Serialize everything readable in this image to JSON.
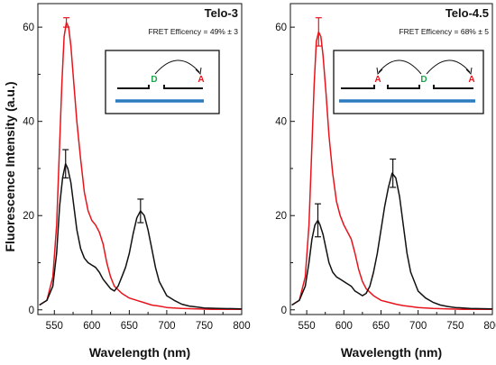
{
  "figure": {
    "ylabel": "Fluorescence Intensity (a.u.)",
    "colors": {
      "red": "#e8141c",
      "black": "#111111",
      "green": "#1aa34a",
      "blue": "#2b7bbf"
    }
  },
  "chart_data": [
    {
      "type": "line",
      "title": "Telo-3",
      "subtitle": "FRET Efficency = 49% ± 3",
      "xlabel": "Wavelength (nm)",
      "ylabel": "Fluorescence Intensity (a.u.)",
      "xlim": [
        528,
        800
      ],
      "ylim": [
        -1,
        65
      ],
      "xticks": [
        550,
        600,
        650,
        700,
        750,
        800
      ],
      "yticks": [
        0,
        20,
        40,
        60
      ],
      "grid": false,
      "series": [
        {
          "color": "#e8141c",
          "x": [
            530,
            540,
            548,
            553,
            557,
            560,
            563,
            566,
            569,
            572,
            576,
            580,
            585,
            590,
            595,
            600,
            605,
            610,
            615,
            620,
            625,
            630,
            640,
            650,
            660,
            670,
            680,
            690,
            700,
            720,
            740,
            760,
            780,
            800
          ],
          "y": [
            1,
            2,
            7,
            18,
            35,
            48,
            58,
            61,
            60,
            56,
            48,
            40,
            32,
            25,
            21,
            19,
            18,
            16.5,
            14,
            10,
            7,
            5,
            3.5,
            2.5,
            2,
            1.5,
            1,
            0.8,
            0.5,
            0.3,
            0.2,
            0.1,
            0.1,
            0.1
          ],
          "error_bars": [
            {
              "x": 566,
              "y": 61,
              "err": 1
            }
          ]
        },
        {
          "color": "#111111",
          "x": [
            530,
            540,
            548,
            553,
            557,
            561,
            565,
            568,
            572,
            576,
            580,
            585,
            590,
            595,
            600,
            605,
            610,
            615,
            620,
            625,
            630,
            635,
            640,
            645,
            650,
            655,
            660,
            665,
            670,
            675,
            680,
            685,
            690,
            700,
            710,
            720,
            730,
            740,
            750,
            770,
            800
          ],
          "y": [
            1,
            2,
            5,
            12,
            22,
            28,
            31,
            30,
            27,
            22,
            17,
            13,
            11,
            10,
            9.5,
            9,
            8,
            6.5,
            5.5,
            4.5,
            4,
            5,
            7,
            9,
            12,
            16,
            19.5,
            21,
            20,
            17,
            13,
            9,
            6,
            3,
            2,
            1.2,
            0.8,
            0.6,
            0.4,
            0.3,
            0.2
          ],
          "error_bars": [
            {
              "x": 565,
              "y": 31,
              "err": 3
            },
            {
              "x": 665,
              "y": 21,
              "err": 2.5
            }
          ]
        }
      ],
      "inset": {
        "labels": [
          {
            "text": "D",
            "color": "green"
          },
          {
            "text": "A",
            "color": "red"
          }
        ]
      }
    },
    {
      "type": "line",
      "title": "Telo-4.5",
      "subtitle": "FRET Efficency = 68% ± 5",
      "xlabel": "Wavelength (nm)",
      "ylabel": "",
      "xlim": [
        528,
        800
      ],
      "ylim": [
        -1,
        65
      ],
      "xticks": [
        550,
        600,
        650,
        700,
        750,
        800
      ],
      "yticks": [
        0,
        20,
        40,
        60
      ],
      "grid": false,
      "series": [
        {
          "color": "#e8141c",
          "x": [
            530,
            540,
            548,
            553,
            557,
            560,
            563,
            566,
            569,
            572,
            576,
            580,
            585,
            590,
            595,
            600,
            605,
            610,
            615,
            620,
            625,
            630,
            640,
            650,
            660,
            670,
            680,
            690,
            700,
            720,
            740,
            760,
            780,
            800
          ],
          "y": [
            1,
            2,
            7,
            18,
            35,
            48,
            57,
            59,
            58,
            54,
            46,
            37,
            29,
            23,
            20,
            18,
            16.5,
            15,
            12,
            8.5,
            6,
            4.5,
            3,
            2,
            1.6,
            1.2,
            0.9,
            0.7,
            0.5,
            0.3,
            0.2,
            0.1,
            0.1,
            0.1
          ],
          "error_bars": [
            {
              "x": 566,
              "y": 59,
              "err": 3
            }
          ]
        },
        {
          "color": "#111111",
          "x": [
            530,
            540,
            548,
            553,
            557,
            561,
            565,
            568,
            572,
            576,
            580,
            585,
            590,
            595,
            600,
            605,
            610,
            615,
            620,
            625,
            630,
            635,
            640,
            645,
            650,
            655,
            660,
            665,
            670,
            675,
            680,
            685,
            690,
            700,
            710,
            720,
            730,
            740,
            750,
            770,
            800
          ],
          "y": [
            1,
            2,
            5,
            10,
            15,
            18,
            19,
            18,
            16,
            13,
            10,
            8,
            7,
            6.5,
            6,
            5.5,
            5,
            4,
            3.5,
            3,
            3.5,
            5,
            8,
            12,
            17,
            22,
            26,
            29,
            28,
            24,
            18,
            12,
            8,
            4,
            2.5,
            1.6,
            1,
            0.7,
            0.5,
            0.3,
            0.2
          ],
          "error_bars": [
            {
              "x": 565,
              "y": 19,
              "err": 3.5
            },
            {
              "x": 666,
              "y": 29,
              "err": 3
            }
          ]
        }
      ],
      "inset": {
        "labels": [
          {
            "text": "A",
            "color": "red"
          },
          {
            "text": "D",
            "color": "green"
          },
          {
            "text": "A",
            "color": "red"
          }
        ]
      }
    }
  ]
}
